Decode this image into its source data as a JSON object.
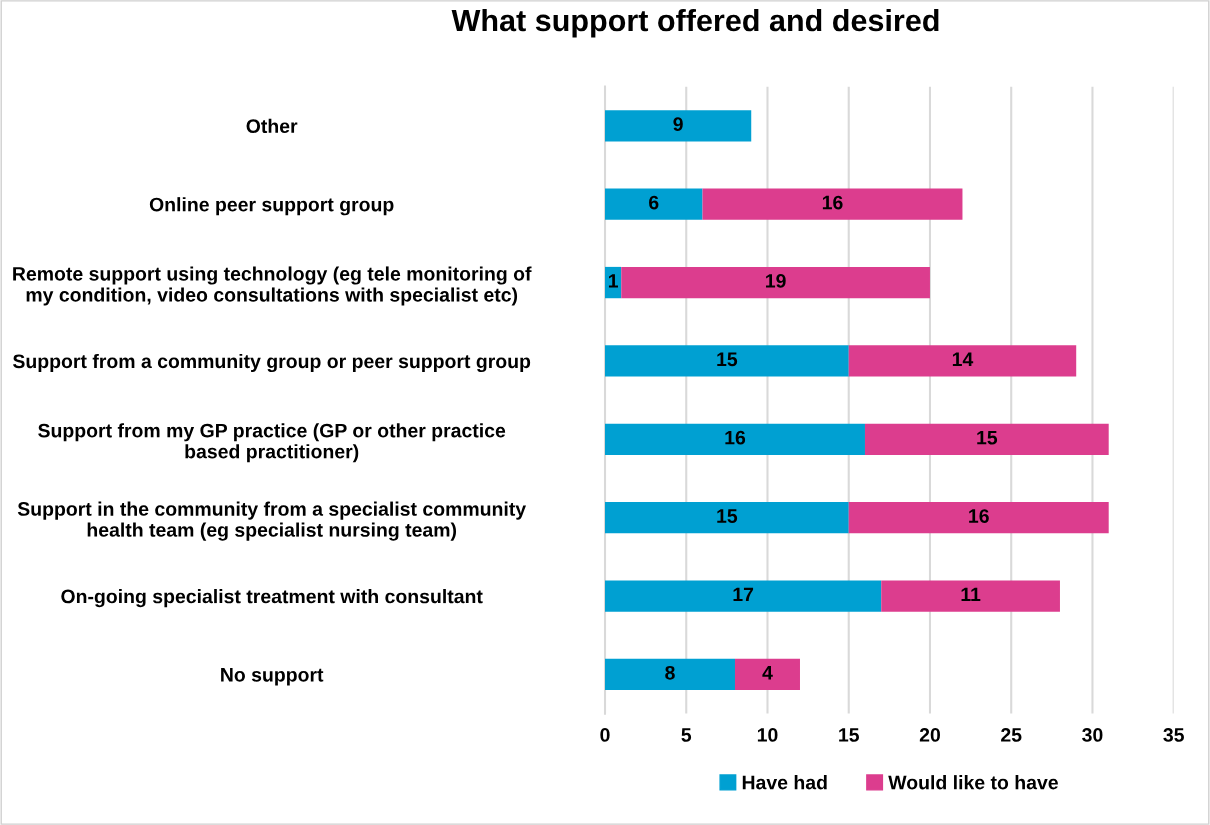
{
  "chart_data": {
    "type": "bar",
    "orientation": "horizontal",
    "stacked": true,
    "title": "What support offered and desired",
    "categories": [
      "Other",
      "Online peer support group",
      "Remote support using technology (eg tele monitoring of\nmy condition, video consultations with specialist etc)",
      "Support from a community group or peer support group",
      "Support from my GP practice (GP or other practice\nbased practitioner)",
      "Support in the community from a specialist community\nhealth team (eg specialist nursing team)",
      "On-going specialist treatment with consultant",
      "No support"
    ],
    "series": [
      {
        "name": "Have had",
        "color": "#00a0d2",
        "values": [
          9,
          6,
          1,
          15,
          16,
          15,
          17,
          8
        ]
      },
      {
        "name": "Would like to have",
        "color": "#dc3d8e",
        "values": [
          null,
          16,
          19,
          14,
          15,
          16,
          11,
          4
        ]
      }
    ],
    "xlim": [
      0,
      35
    ],
    "xticks": [
      0,
      5,
      10,
      15,
      20,
      25,
      30,
      35
    ],
    "grid": "x",
    "legend": "bottom",
    "data_labels": true
  }
}
